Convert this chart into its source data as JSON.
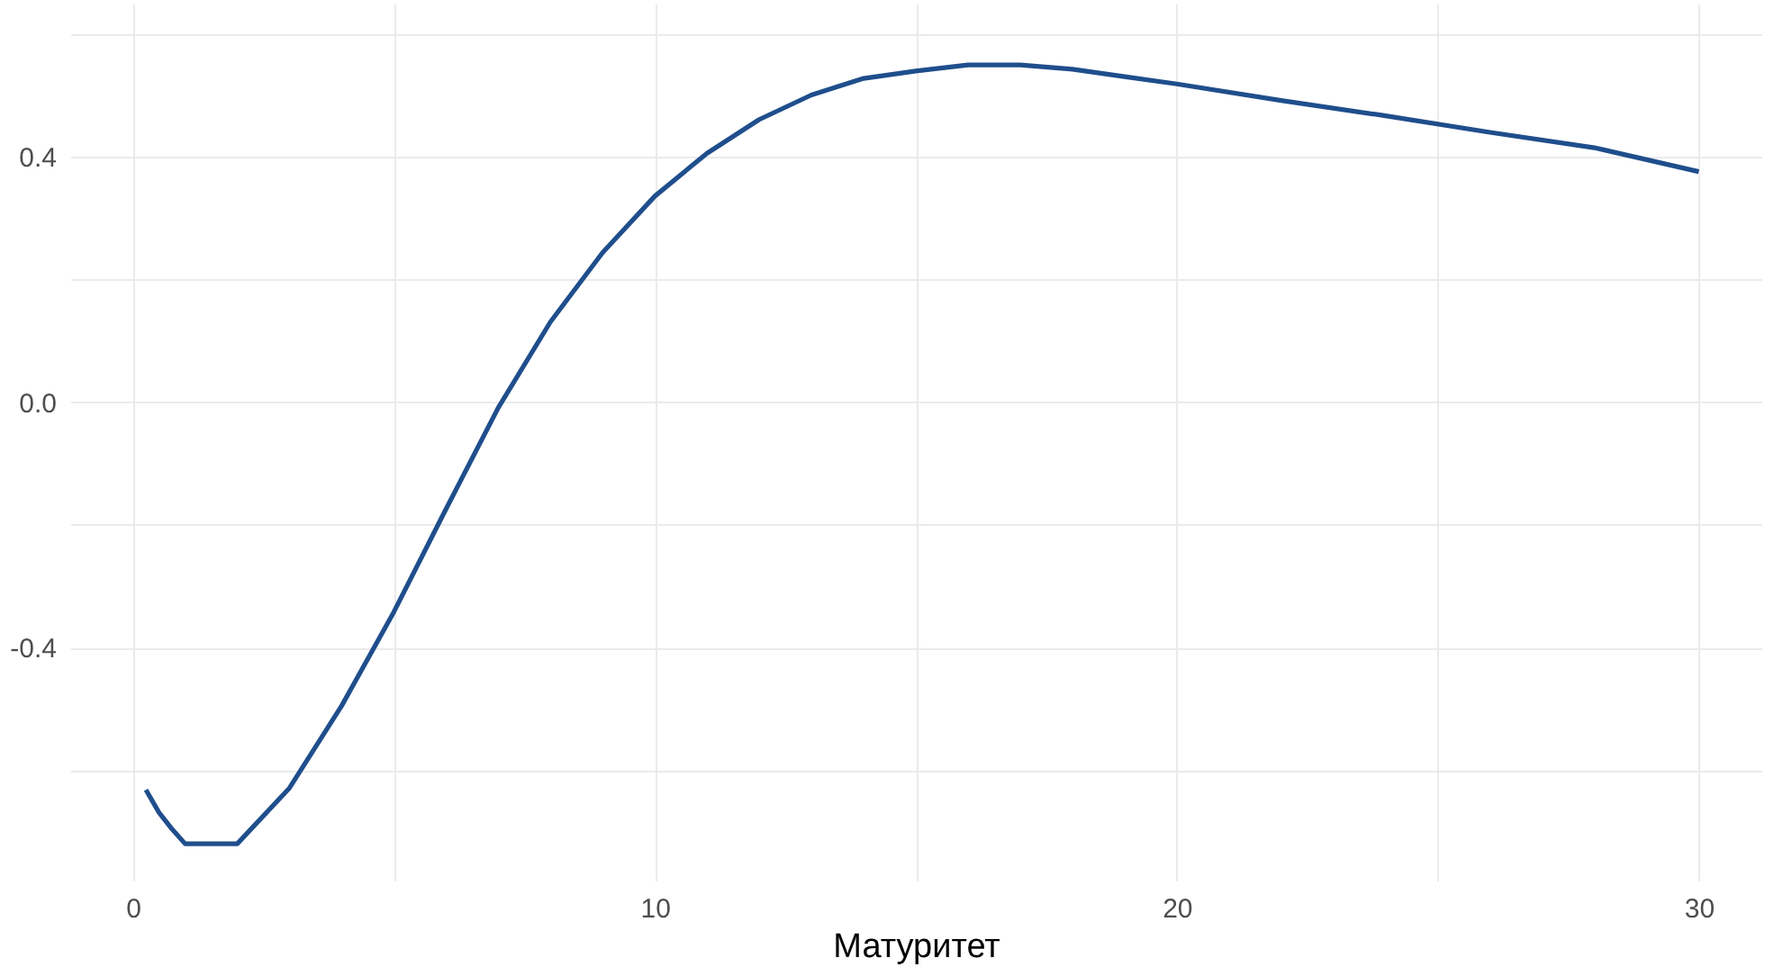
{
  "chart_data": {
    "type": "line",
    "xlabel": "Матуритет",
    "x": [
      0.25,
      0.5,
      0.75,
      1,
      2,
      3,
      4,
      5,
      6,
      7,
      8,
      9,
      10,
      11,
      12,
      13,
      14,
      15,
      16,
      17,
      18,
      19,
      20,
      22,
      24,
      26,
      28,
      30
    ],
    "series": [
      {
        "color": "#1f4e8c",
        "values": [
          -0.632,
          -0.669,
          -0.696,
          -0.72,
          -0.72,
          -0.629,
          -0.495,
          -0.342,
          -0.174,
          -0.009,
          0.131,
          0.244,
          0.336,
          0.406,
          0.461,
          0.501,
          0.528,
          0.54,
          0.55,
          0.55,
          0.543,
          0.531,
          0.519,
          0.492,
          0.467,
          0.44,
          0.415,
          0.376
        ]
      }
    ],
    "xlim": [
      -1.2,
      31.2
    ],
    "ylim": [
      -0.78,
      0.65
    ],
    "xticks": [
      0,
      {
        "value": 5,
        "label": null
      },
      10,
      {
        "value": 15,
        "label": null
      },
      20,
      {
        "value": 25,
        "label": null
      },
      30
    ],
    "yticks": [
      {
        "value": -0.6,
        "label": null
      },
      -0.4,
      {
        "value": -0.2,
        "label": null
      },
      {
        "value": 0,
        "label": "0.0"
      },
      {
        "value": 0.2,
        "label": null
      },
      0.4,
      {
        "value": 0.6,
        "label": null
      }
    ],
    "grid": true,
    "marker": "none",
    "line_style": "solid"
  }
}
